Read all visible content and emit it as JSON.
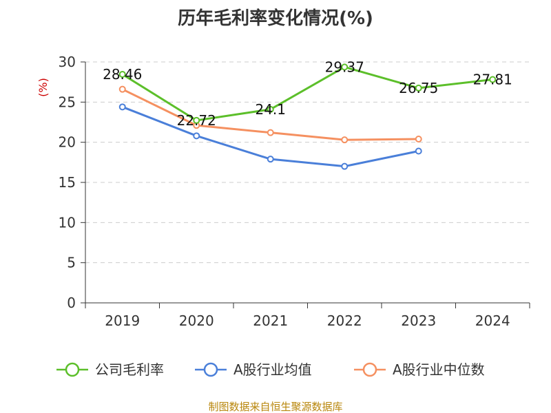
{
  "chart_data": {
    "type": "line",
    "title": "历年毛利率变化情况(%)",
    "ylabel": "(%)",
    "categories": [
      "2019",
      "2020",
      "2021",
      "2022",
      "2023",
      "2024"
    ],
    "ylim": [
      0,
      30
    ],
    "yticks": [
      "0",
      "5",
      "10",
      "15",
      "20",
      "25",
      "30"
    ],
    "grid": true,
    "legend_position": "bottom",
    "series": [
      {
        "name": "公司毛利率",
        "color": "#5cbf2a",
        "values": [
          28.46,
          22.72,
          24.1,
          29.37,
          26.75,
          27.81
        ],
        "labels": [
          "28.46",
          "22.72",
          "24.1",
          "29.37",
          "26.75",
          "27.81"
        ]
      },
      {
        "name": "A股行业均值",
        "color": "#4a7fd9",
        "values": [
          24.4,
          20.8,
          17.9,
          17.0,
          18.9,
          null
        ]
      },
      {
        "name": "A股行业中位数",
        "color": "#f59060",
        "values": [
          26.6,
          22.1,
          21.2,
          20.3,
          20.4,
          null
        ]
      }
    ]
  },
  "footer": "制图数据来自恒生聚源数据库"
}
